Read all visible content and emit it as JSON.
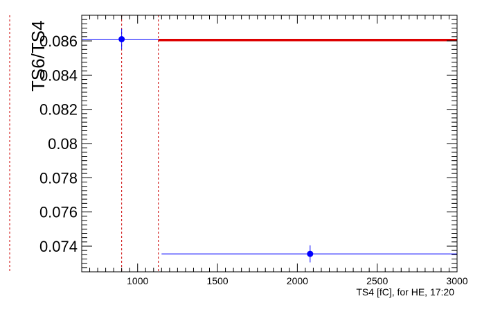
{
  "chart_data": {
    "type": "scatter",
    "title": "",
    "xlabel": "TS4 [fC], for HE, 17:20",
    "ylabel": "TS6/TS4",
    "xlim": [
      650,
      3000
    ],
    "ylim": [
      0.0725,
      0.0875
    ],
    "x_ticks": [
      1000,
      1500,
      2000,
      2500,
      3000
    ],
    "x_tick_labels": [
      "1000",
      "1500",
      "2000",
      "2500",
      "3000"
    ],
    "y_ticks": [
      0.074,
      0.076,
      0.078,
      0.08,
      0.082,
      0.084,
      0.086
    ],
    "y_tick_labels": [
      "0.074",
      "0.076",
      "0.078",
      "0.08",
      "0.082",
      "0.084",
      "0.086"
    ],
    "grid": false,
    "series": [
      {
        "color": "#0000ff",
        "points": [
          {
            "x": 900,
            "y": 0.0861,
            "x_low": 650,
            "x_high": 1130,
            "y_err": 0.0006
          },
          {
            "x": 2080,
            "y": 0.07355,
            "x_low": 1150,
            "x_high": 3000,
            "y_err": 0.0005
          }
        ]
      }
    ],
    "fit_line": {
      "color": "#dd0000",
      "x_from": 1130,
      "x_to": 3000,
      "y": 0.08605
    },
    "vertical_markers": {
      "color": "#cc0000",
      "x": [
        900,
        1130
      ]
    },
    "outer_marker": {
      "color": "#cc0000"
    }
  }
}
